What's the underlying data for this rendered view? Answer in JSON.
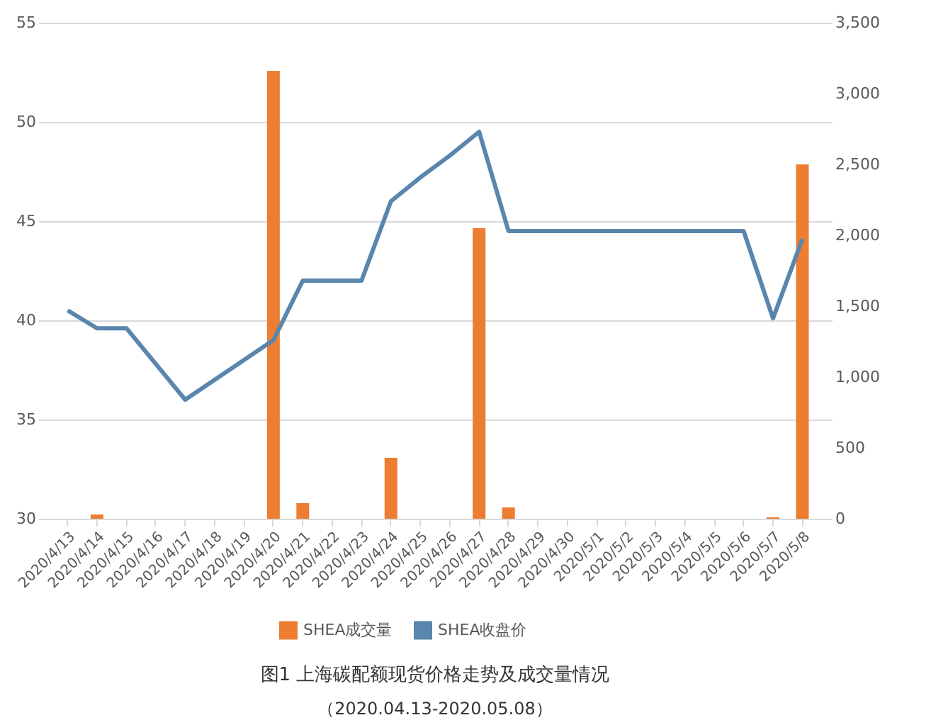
{
  "chart_data": {
    "type": "bar",
    "title": "图1 上海碳配额现货价格走势及成交量情况",
    "subtitle": "（2020.04.13-2020.05.08）",
    "categories": [
      "2020/4/13",
      "2020/4/14",
      "2020/4/15",
      "2020/4/16",
      "2020/4/17",
      "2020/4/18",
      "2020/4/19",
      "2020/4/20",
      "2020/4/21",
      "2020/4/22",
      "2020/4/23",
      "2020/4/24",
      "2020/4/25",
      "2020/4/26",
      "2020/4/27",
      "2020/4/28",
      "2020/4/29",
      "2020/4/30",
      "2020/5/1",
      "2020/5/2",
      "2020/5/3",
      "2020/5/4",
      "2020/5/5",
      "2020/5/6",
      "2020/5/7",
      "2020/5/8"
    ],
    "series": [
      {
        "name": "SHEA成交量",
        "axis": "y2",
        "color": "#ed7d31",
        "values": [
          0,
          30,
          0,
          0,
          0,
          0,
          0,
          3160,
          110,
          0,
          0,
          430,
          0,
          0,
          2050,
          80,
          0,
          0,
          0,
          0,
          0,
          0,
          0,
          0,
          10,
          2500
        ]
      },
      {
        "name": "SHEA收盘价",
        "type": "line",
        "color": "#5a86ad",
        "values": [
          40.5,
          39.6,
          39.6,
          37.8,
          36.0,
          37.0,
          38.0,
          39.0,
          42.0,
          42.0,
          42.0,
          46.0,
          47.2,
          48.3,
          49.5,
          44.5,
          44.5,
          44.5,
          44.5,
          44.5,
          44.5,
          44.5,
          44.5,
          44.5,
          40.1,
          44.1
        ]
      }
    ],
    "ylim": [
      30,
      55
    ],
    "yticks": [
      30,
      35,
      40,
      45,
      50,
      55
    ],
    "y2lim": [
      0,
      3500
    ],
    "y2ticks": [
      0,
      {
        "value": 500,
        "label": "500"
      },
      {
        "value": 1000,
        "label": "1,000"
      },
      {
        "value": 1500,
        "label": "1,500"
      },
      {
        "value": 2000,
        "label": "2,000"
      },
      {
        "value": 2500,
        "label": "2,500"
      },
      {
        "value": 3000,
        "label": "3,000"
      },
      {
        "value": 3500,
        "label": "3,500"
      }
    ],
    "grid": "y",
    "legend": "bottom"
  }
}
